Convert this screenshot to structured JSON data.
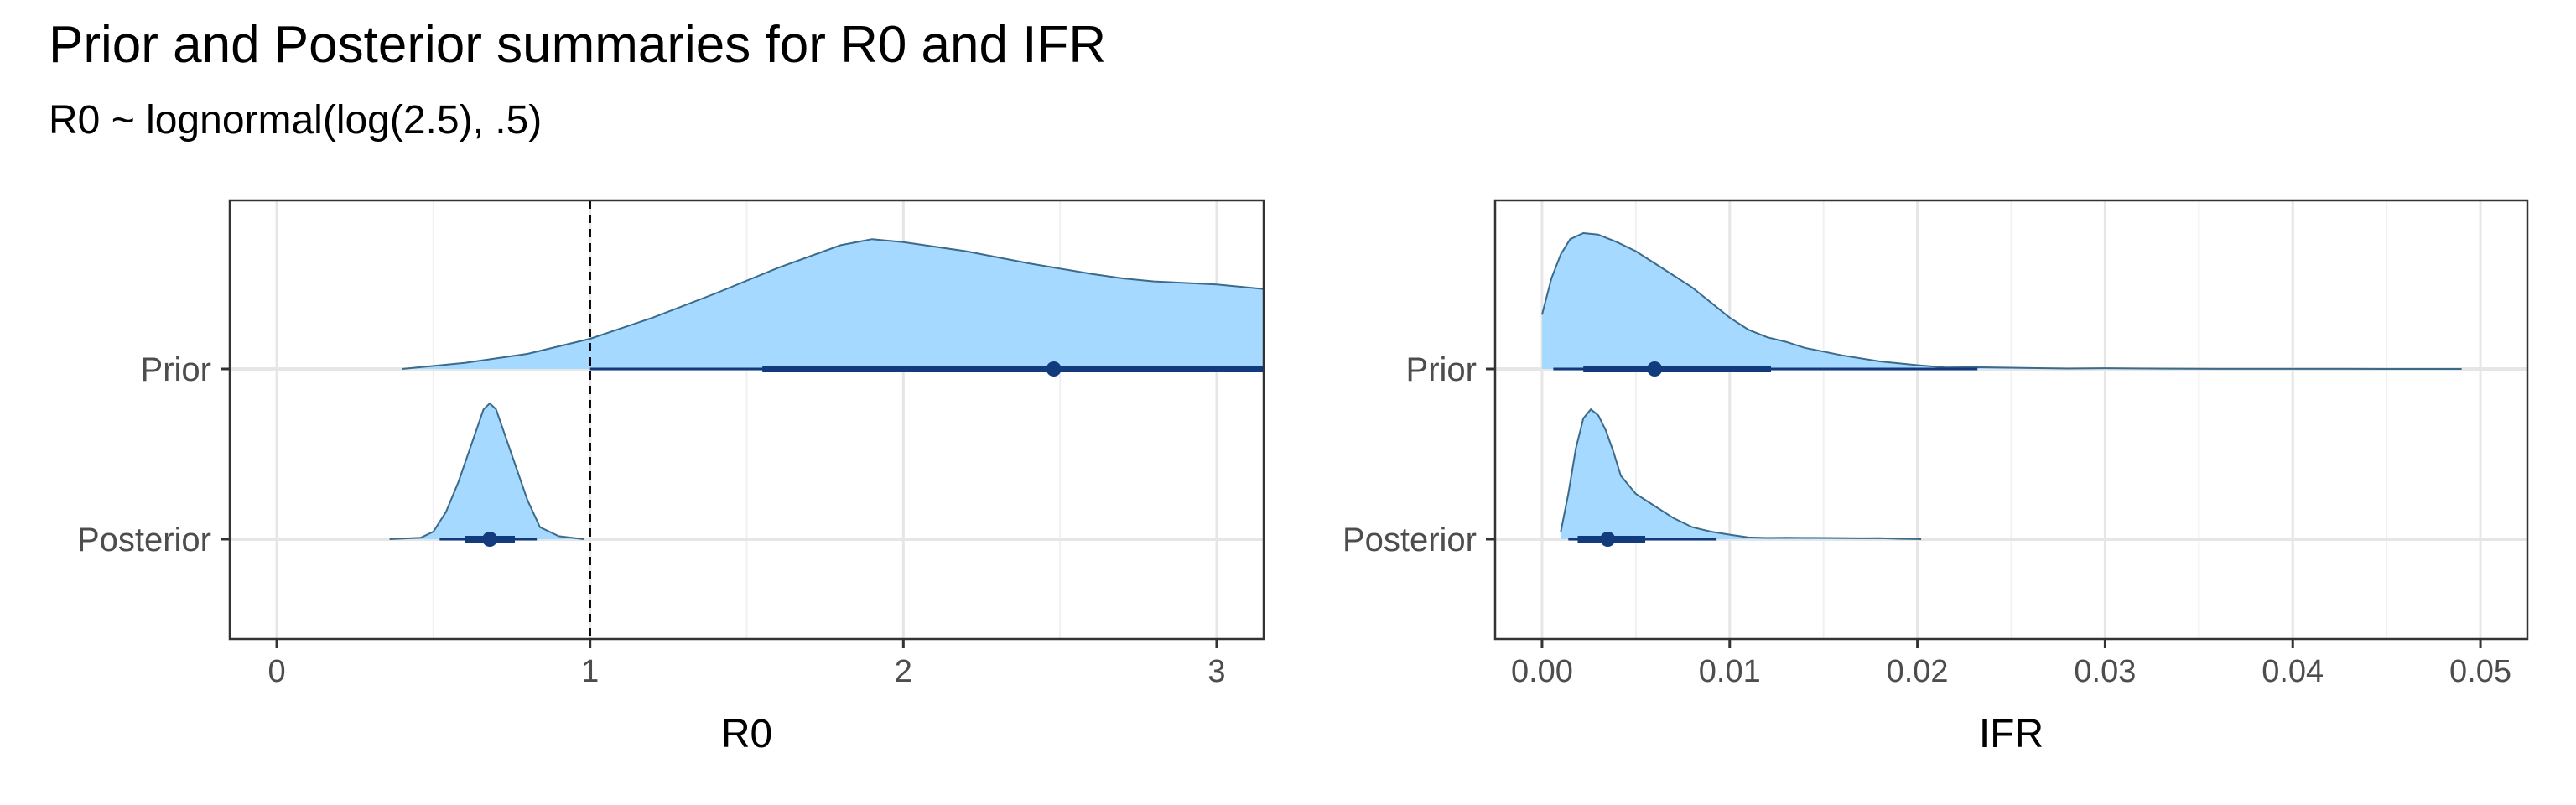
{
  "title": "Prior and Posterior summaries for R0 and IFR",
  "subtitle": "R0 ~ lognormal(log(2.5), .5)",
  "colors": {
    "fill": "#a6d9ff",
    "outline": "#3b6a8a",
    "interval": "#113b7d",
    "grid_major": "#e6e6e6",
    "grid_minor": "#f0f0f0",
    "refline": "#000000"
  },
  "chart_data": [
    {
      "type": "density",
      "xlabel": "R0",
      "xlim": [
        -0.15,
        3.15
      ],
      "xticks": [
        0,
        1,
        2,
        3
      ],
      "tick_labels": [
        "0",
        "1",
        "2",
        "3"
      ],
      "categories": [
        "Prior",
        "Posterior"
      ],
      "reference_line": 1,
      "grid": true,
      "series": [
        {
          "name": "Prior",
          "median": 2.48,
          "interval_66": [
            1.55,
            3.15
          ],
          "interval_95": [
            1.0,
            3.15
          ],
          "density": [
            [
              0.4,
              0.0
            ],
            [
              0.6,
              0.04
            ],
            [
              0.8,
              0.1
            ],
            [
              1.0,
              0.2
            ],
            [
              1.2,
              0.34
            ],
            [
              1.4,
              0.5
            ],
            [
              1.6,
              0.67
            ],
            [
              1.8,
              0.82
            ],
            [
              1.9,
              0.86
            ],
            [
              2.0,
              0.84
            ],
            [
              2.2,
              0.78
            ],
            [
              2.4,
              0.7
            ],
            [
              2.6,
              0.63
            ],
            [
              2.7,
              0.6
            ],
            [
              2.8,
              0.58
            ],
            [
              3.0,
              0.56
            ],
            [
              3.15,
              0.53
            ]
          ]
        },
        {
          "name": "Posterior",
          "median": 0.68,
          "interval_66": [
            0.6,
            0.76
          ],
          "interval_95": [
            0.52,
            0.83
          ],
          "density": [
            [
              0.36,
              0.0
            ],
            [
              0.46,
              0.01
            ],
            [
              0.5,
              0.05
            ],
            [
              0.54,
              0.18
            ],
            [
              0.58,
              0.38
            ],
            [
              0.62,
              0.62
            ],
            [
              0.66,
              0.86
            ],
            [
              0.68,
              0.9
            ],
            [
              0.7,
              0.86
            ],
            [
              0.72,
              0.74
            ],
            [
              0.76,
              0.5
            ],
            [
              0.8,
              0.26
            ],
            [
              0.84,
              0.08
            ],
            [
              0.9,
              0.02
            ],
            [
              0.98,
              0.0
            ]
          ]
        }
      ]
    },
    {
      "type": "density",
      "xlabel": "IFR",
      "xlim": [
        -0.0025,
        0.0525
      ],
      "xticks": [
        0.0,
        0.01,
        0.02,
        0.03,
        0.04,
        0.05
      ],
      "tick_labels": [
        "0.00",
        "0.01",
        "0.02",
        "0.03",
        "0.04",
        "0.05"
      ],
      "categories": [
        "Prior",
        "Posterior"
      ],
      "grid": true,
      "series": [
        {
          "name": "Prior",
          "median": 0.006,
          "interval_66": [
            0.0022,
            0.0122
          ],
          "interval_95": [
            0.0006,
            0.0232
          ],
          "density": [
            [
              0.0,
              0.36
            ],
            [
              0.0005,
              0.6
            ],
            [
              0.001,
              0.76
            ],
            [
              0.0015,
              0.86
            ],
            [
              0.0022,
              0.9
            ],
            [
              0.003,
              0.89
            ],
            [
              0.004,
              0.84
            ],
            [
              0.005,
              0.78
            ],
            [
              0.006,
              0.7
            ],
            [
              0.007,
              0.62
            ],
            [
              0.008,
              0.54
            ],
            [
              0.009,
              0.44
            ],
            [
              0.01,
              0.34
            ],
            [
              0.011,
              0.26
            ],
            [
              0.012,
              0.21
            ],
            [
              0.013,
              0.18
            ],
            [
              0.014,
              0.14
            ],
            [
              0.016,
              0.09
            ],
            [
              0.018,
              0.05
            ],
            [
              0.02,
              0.025
            ],
            [
              0.0215,
              0.01
            ],
            [
              0.023,
              0.012
            ],
            [
              0.025,
              0.008
            ],
            [
              0.028,
              0.003
            ],
            [
              0.03,
              0.005
            ],
            [
              0.033,
              0.002
            ],
            [
              0.036,
              0.001
            ],
            [
              0.04,
              0.001
            ],
            [
              0.045,
              0.0
            ],
            [
              0.049,
              0.0
            ]
          ]
        },
        {
          "name": "Posterior",
          "median": 0.0035,
          "interval_66": [
            0.0019,
            0.0055
          ],
          "interval_95": [
            0.0014,
            0.0093
          ],
          "density": [
            [
              0.001,
              0.05
            ],
            [
              0.0014,
              0.3
            ],
            [
              0.0018,
              0.6
            ],
            [
              0.0022,
              0.8
            ],
            [
              0.0026,
              0.86
            ],
            [
              0.003,
              0.82
            ],
            [
              0.0034,
              0.72
            ],
            [
              0.0038,
              0.58
            ],
            [
              0.0042,
              0.42
            ],
            [
              0.005,
              0.3
            ],
            [
              0.006,
              0.22
            ],
            [
              0.007,
              0.14
            ],
            [
              0.008,
              0.08
            ],
            [
              0.009,
              0.05
            ],
            [
              0.01,
              0.03
            ],
            [
              0.011,
              0.012
            ],
            [
              0.012,
              0.008
            ],
            [
              0.013,
              0.01
            ],
            [
              0.015,
              0.008
            ],
            [
              0.017,
              0.006
            ],
            [
              0.018,
              0.007
            ],
            [
              0.019,
              0.003
            ],
            [
              0.0202,
              0.0
            ]
          ]
        }
      ]
    }
  ]
}
